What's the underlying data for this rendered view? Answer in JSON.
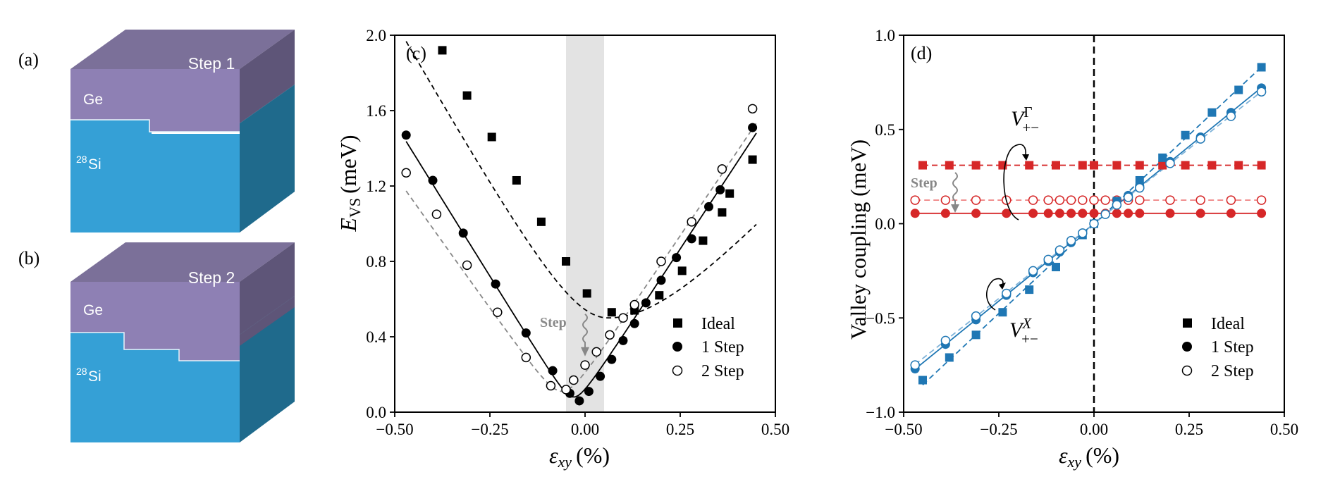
{
  "panel_a": {
    "label": "(a)",
    "step_label": "Step 1",
    "layer_top": "Ge",
    "layer_bottom_sup": "28",
    "layer_bottom": "Si",
    "colors": {
      "top_face": "#7b7099",
      "front_upper": "#8e80b4",
      "side_upper": "#5e5578",
      "front_lower": "#35a0d6",
      "side_lower": "#1f6a8c"
    }
  },
  "panel_b": {
    "label": "(b)",
    "step_label": "Step 2",
    "layer_top": "Ge",
    "layer_bottom_sup": "28",
    "layer_bottom": "Si"
  },
  "chart_data": [
    {
      "panel": "(c)",
      "type": "scatter",
      "ylabel_main": "E",
      "ylabel_sub": "VS",
      "ylabel_unit": "(meV)",
      "xlabel_main": "ε",
      "xlabel_sub": "xy",
      "xlabel_unit": "(%)",
      "xlim": [
        -0.5,
        0.5
      ],
      "ylim": [
        0.0,
        2.0
      ],
      "xticks": [
        -0.5,
        -0.25,
        0.0,
        0.25,
        0.5
      ],
      "xtick_labels": [
        "−0.50",
        "−0.25",
        "0.00",
        "0.25",
        "0.50"
      ],
      "yticks": [
        0.0,
        0.4,
        0.8,
        1.2,
        1.6,
        2.0
      ],
      "ytick_labels": [
        "0.0",
        "0.4",
        "0.8",
        "1.2",
        "1.6",
        "2.0"
      ],
      "shaded_band": [
        -0.05,
        0.05
      ],
      "annotation": {
        "text": "Step",
        "arrow_from": [
          0.0,
          0.52
        ],
        "arrow_to": [
          0.0,
          0.3
        ]
      },
      "legend": {
        "position": "lower-right",
        "entries": [
          "Ideal",
          "1 Step",
          "2 Step"
        ]
      },
      "series": [
        {
          "name": "Ideal",
          "marker": "square-filled",
          "line": "dashed",
          "color": "#000000",
          "x": [
            -0.375,
            -0.31,
            -0.245,
            -0.18,
            -0.115,
            -0.05,
            0.005,
            0.07,
            0.13,
            0.195,
            0.255,
            0.31,
            0.36,
            0.38,
            0.44
          ],
          "y": [
            1.92,
            1.68,
            1.46,
            1.23,
            1.01,
            0.8,
            0.63,
            0.53,
            0.54,
            0.62,
            0.75,
            0.91,
            1.06,
            1.16,
            1.34
          ],
          "fit": {
            "x0": 0.06,
            "y0": 0.5,
            "a_left": 3.59,
            "a_right": 2.21
          }
        },
        {
          "name": "1 Step",
          "marker": "circle-filled",
          "line": "solid",
          "color": "#000000",
          "x": [
            -0.47,
            -0.4,
            -0.32,
            -0.235,
            -0.155,
            -0.085,
            -0.04,
            -0.015,
            0.01,
            0.04,
            0.07,
            0.1,
            0.13,
            0.16,
            0.2,
            0.24,
            0.28,
            0.325,
            0.355,
            0.44
          ],
          "y": [
            1.47,
            1.23,
            0.95,
            0.68,
            0.42,
            0.22,
            0.1,
            0.06,
            0.11,
            0.19,
            0.28,
            0.38,
            0.47,
            0.58,
            0.7,
            0.82,
            0.92,
            1.09,
            1.18,
            1.51
          ],
          "fit": {
            "x0": -0.03,
            "y0": 0.08,
            "a_left": 3.26,
            "a_right": 3.08
          }
        },
        {
          "name": "2 Step",
          "marker": "circle-open",
          "line": "dashed-gray",
          "color": "#000000",
          "x": [
            -0.47,
            -0.39,
            -0.31,
            -0.23,
            -0.155,
            -0.09,
            -0.05,
            -0.03,
            0.0,
            0.03,
            0.065,
            0.1,
            0.13,
            0.2,
            0.28,
            0.36,
            0.44
          ],
          "y": [
            1.27,
            1.05,
            0.78,
            0.53,
            0.29,
            0.14,
            0.12,
            0.17,
            0.25,
            0.32,
            0.41,
            0.5,
            0.57,
            0.8,
            1.01,
            1.29,
            1.61
          ],
          "fit": {
            "x0": -0.06,
            "y0": 0.11,
            "a_left": 2.85,
            "a_right": 3.0
          }
        }
      ]
    },
    {
      "panel": "(d)",
      "type": "scatter",
      "ylabel": "Valley coupling (meV)",
      "xlabel_main": "ε",
      "xlabel_sub": "xy",
      "xlabel_unit": "(%)",
      "xlim": [
        -0.5,
        0.5
      ],
      "ylim": [
        -1.0,
        1.0
      ],
      "xticks": [
        -0.5,
        -0.25,
        0.0,
        0.25,
        0.5
      ],
      "xtick_labels": [
        "−0.50",
        "−0.25",
        "0.00",
        "0.25",
        "0.50"
      ],
      "yticks": [
        -1.0,
        -0.5,
        0.0,
        0.5,
        1.0
      ],
      "ytick_labels": [
        "−1.0",
        "−0.5",
        "0.0",
        "0.5",
        "1.0"
      ],
      "vline_x": 0.0,
      "annotations": [
        {
          "text_main": "V",
          "text_sup": "Γ",
          "text_sub": "+−"
        },
        {
          "text_main": "V",
          "text_sup": "X",
          "text_sub": "+−"
        },
        {
          "text": "Step"
        }
      ],
      "legend": {
        "position": "lower-right",
        "entries": [
          "Ideal",
          "1 Step",
          "2 Step"
        ]
      },
      "colors": {
        "gamma": "#d62728",
        "gamma_light": "#f08a8a",
        "x": "#1f77b4",
        "x_light": "#7fb3d9"
      },
      "series": [
        {
          "name": "Gamma Ideal",
          "marker": "square-filled",
          "line": "dashed",
          "color": "#d62728",
          "x": [
            -0.45,
            -0.38,
            -0.31,
            -0.24,
            -0.17,
            -0.1,
            -0.03,
            0.0,
            0.06,
            0.12,
            0.18,
            0.24,
            0.31,
            0.38,
            0.44
          ],
          "y": [
            0.31,
            0.31,
            0.31,
            0.31,
            0.31,
            0.31,
            0.31,
            0.31,
            0.31,
            0.31,
            0.31,
            0.31,
            0.31,
            0.31,
            0.31
          ]
        },
        {
          "name": "Gamma 1 Step",
          "marker": "circle-filled",
          "line": "solid",
          "color": "#d62728",
          "x": [
            -0.47,
            -0.39,
            -0.31,
            -0.23,
            -0.16,
            -0.12,
            -0.09,
            -0.06,
            -0.03,
            0.0,
            0.03,
            0.06,
            0.09,
            0.12,
            0.2,
            0.28,
            0.36,
            0.44
          ],
          "y": [
            0.055,
            0.055,
            0.055,
            0.055,
            0.055,
            0.055,
            0.055,
            0.055,
            0.055,
            0.055,
            0.055,
            0.055,
            0.055,
            0.055,
            0.055,
            0.055,
            0.055,
            0.055
          ]
        },
        {
          "name": "Gamma 2 Step",
          "marker": "circle-open",
          "line": "dashed-light",
          "color": "#d62728",
          "x": [
            -0.47,
            -0.39,
            -0.31,
            -0.23,
            -0.16,
            -0.12,
            -0.09,
            -0.06,
            -0.03,
            0.0,
            0.03,
            0.06,
            0.09,
            0.12,
            0.2,
            0.28,
            0.36,
            0.44
          ],
          "y": [
            0.125,
            0.125,
            0.125,
            0.125,
            0.125,
            0.125,
            0.125,
            0.125,
            0.125,
            0.125,
            0.125,
            0.125,
            0.125,
            0.125,
            0.125,
            0.125,
            0.125,
            0.125
          ]
        },
        {
          "name": "X Ideal",
          "marker": "square-filled",
          "line": "dashed",
          "color": "#1f77b4",
          "x": [
            -0.45,
            -0.38,
            -0.31,
            -0.24,
            -0.17,
            -0.1,
            -0.03,
            0.0,
            0.06,
            0.12,
            0.18,
            0.24,
            0.31,
            0.38,
            0.44
          ],
          "y": [
            -0.83,
            -0.71,
            -0.59,
            -0.47,
            -0.35,
            -0.23,
            -0.06,
            0.0,
            0.12,
            0.23,
            0.35,
            0.47,
            0.59,
            0.71,
            0.83
          ]
        },
        {
          "name": "X 1 Step",
          "marker": "circle-filled",
          "line": "solid",
          "color": "#1f77b4",
          "x": [
            -0.47,
            -0.39,
            -0.31,
            -0.23,
            -0.16,
            -0.12,
            -0.09,
            -0.06,
            -0.03,
            0.0,
            0.03,
            0.06,
            0.09,
            0.12,
            0.2,
            0.28,
            0.36,
            0.44
          ],
          "y": [
            -0.77,
            -0.64,
            -0.51,
            -0.38,
            -0.26,
            -0.2,
            -0.15,
            -0.1,
            -0.05,
            0.0,
            0.05,
            0.1,
            0.15,
            0.2,
            0.33,
            0.46,
            0.59,
            0.72
          ]
        },
        {
          "name": "X 2 Step",
          "marker": "circle-open",
          "line": "dashed-light",
          "color": "#1f77b4",
          "x": [
            -0.47,
            -0.39,
            -0.31,
            -0.23,
            -0.16,
            -0.12,
            -0.09,
            -0.06,
            -0.03,
            0.0,
            0.03,
            0.06,
            0.09,
            0.12,
            0.2,
            0.28,
            0.36,
            0.44
          ],
          "y": [
            -0.75,
            -0.62,
            -0.49,
            -0.37,
            -0.25,
            -0.19,
            -0.14,
            -0.09,
            -0.05,
            0.0,
            0.05,
            0.1,
            0.14,
            0.19,
            0.32,
            0.45,
            0.57,
            0.7
          ]
        }
      ]
    }
  ]
}
